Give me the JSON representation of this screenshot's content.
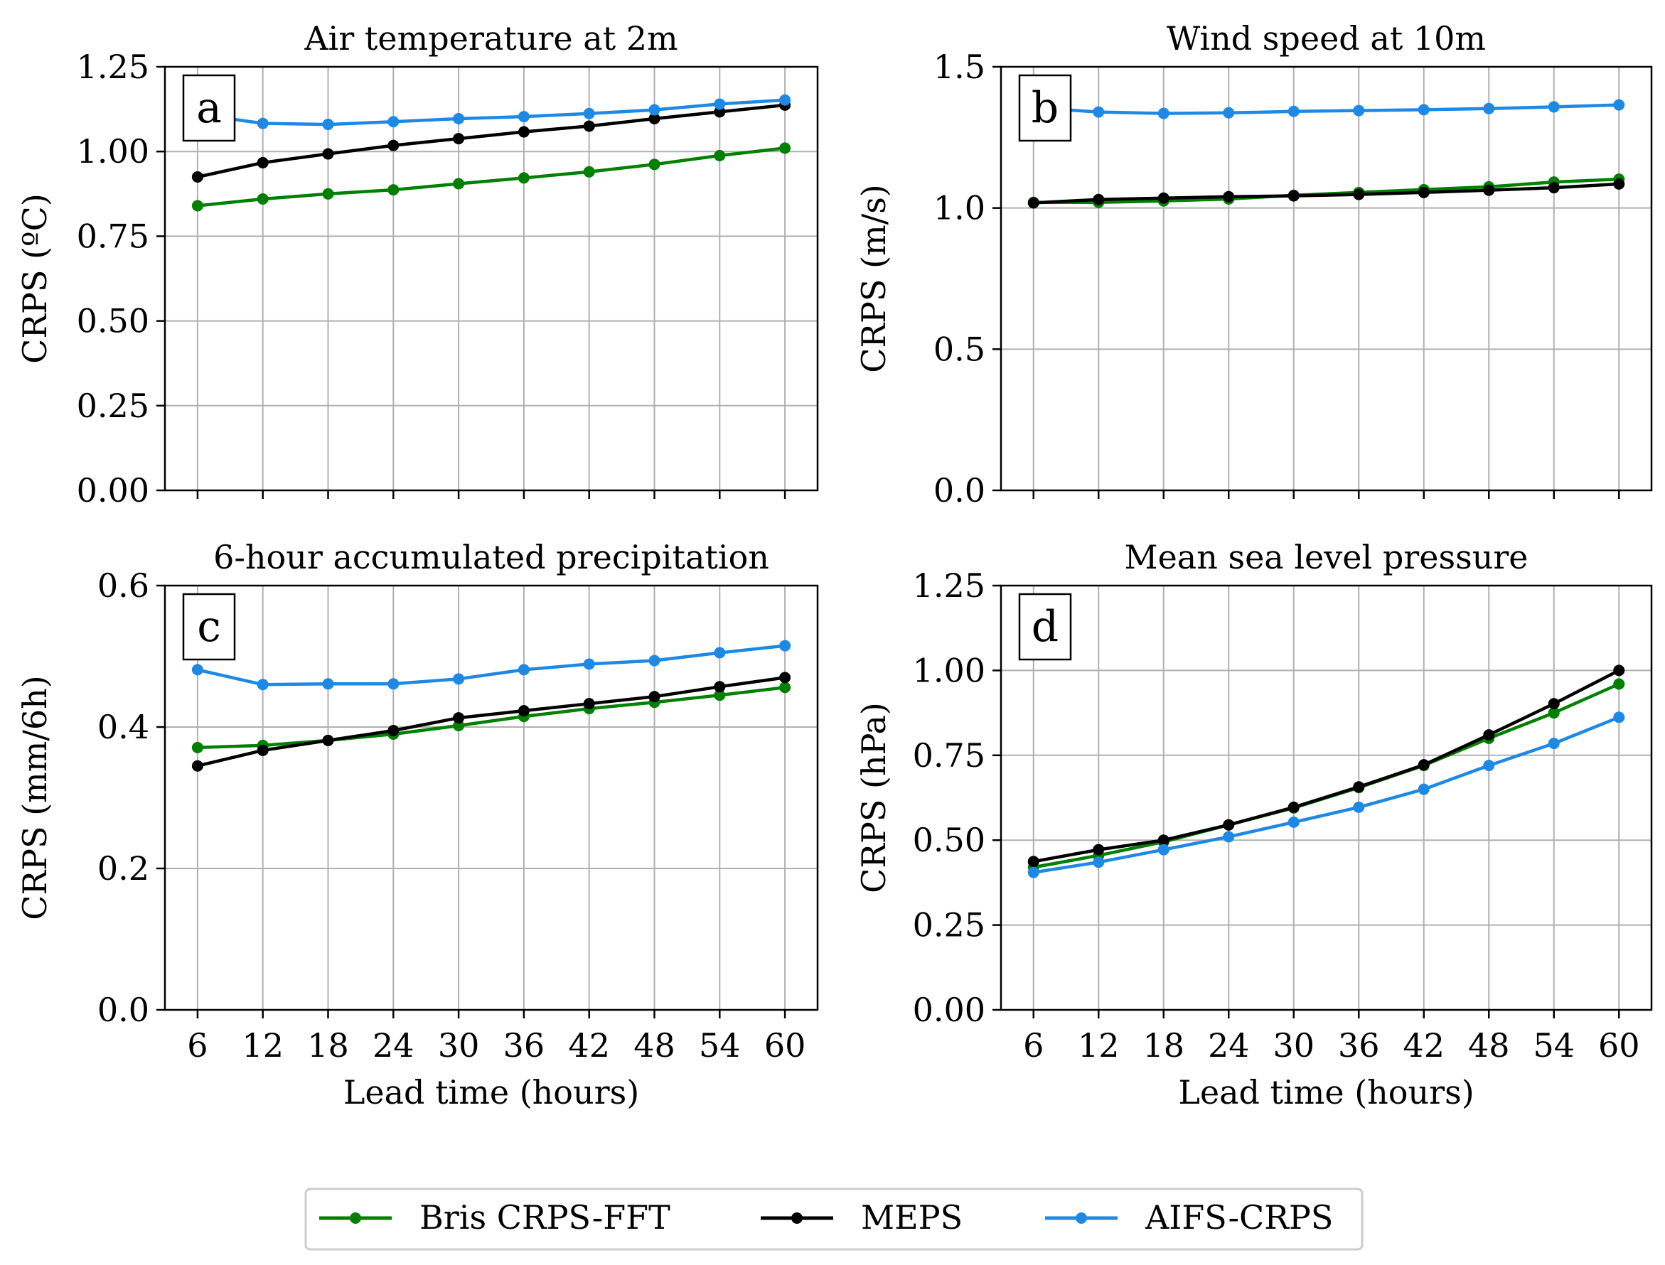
{
  "chart_data": [
    {
      "type": "line",
      "panel_label": "a",
      "title": "Air temperature at 2m",
      "xlabel": "",
      "ylabel": "CRPS (ºC)",
      "x": [
        6,
        12,
        18,
        24,
        30,
        36,
        42,
        48,
        54,
        60
      ],
      "xlim": [
        3,
        63
      ],
      "ylim": [
        0,
        1.25
      ],
      "yticks": [
        "0.00",
        "0.25",
        "0.50",
        "0.75",
        "1.00",
        "1.25"
      ],
      "grid": true,
      "series": [
        {
          "name": "Bris CRPS-FFT",
          "color": "#008000",
          "values": [
            0.84,
            0.86,
            0.875,
            0.887,
            0.905,
            0.922,
            0.94,
            0.962,
            0.988,
            1.01
          ]
        },
        {
          "name": "MEPS",
          "color": "#000000",
          "values": [
            0.925,
            0.967,
            0.993,
            1.018,
            1.038,
            1.058,
            1.075,
            1.097,
            1.117,
            1.137
          ]
        },
        {
          "name": "AIFS-CRPS",
          "color": "#1e88e5",
          "values": [
            1.11,
            1.083,
            1.08,
            1.088,
            1.097,
            1.103,
            1.112,
            1.123,
            1.14,
            1.152
          ]
        }
      ]
    },
    {
      "type": "line",
      "panel_label": "b",
      "title": "Wind speed at 10m",
      "xlabel": "",
      "ylabel": "CRPS (m/s)",
      "x": [
        6,
        12,
        18,
        24,
        30,
        36,
        42,
        48,
        54,
        60
      ],
      "xlim": [
        3,
        63
      ],
      "ylim": [
        0,
        1.5
      ],
      "yticks": [
        "0.0",
        "0.5",
        "1.0",
        "1.5"
      ],
      "grid": true,
      "series": [
        {
          "name": "Bris CRPS-FFT",
          "color": "#008000",
          "values": [
            1.02,
            1.02,
            1.025,
            1.032,
            1.045,
            1.055,
            1.065,
            1.075,
            1.092,
            1.102
          ]
        },
        {
          "name": "MEPS",
          "color": "#000000",
          "values": [
            1.018,
            1.03,
            1.035,
            1.04,
            1.043,
            1.048,
            1.055,
            1.063,
            1.072,
            1.085
          ]
        },
        {
          "name": "AIFS-CRPS",
          "color": "#1e88e5",
          "values": [
            1.355,
            1.34,
            1.335,
            1.337,
            1.342,
            1.345,
            1.348,
            1.352,
            1.358,
            1.365
          ]
        }
      ]
    },
    {
      "type": "line",
      "panel_label": "c",
      "title": "6-hour accumulated precipitation",
      "xlabel": "Lead time (hours)",
      "ylabel": "CRPS (mm/6h)",
      "x": [
        6,
        12,
        18,
        24,
        30,
        36,
        42,
        48,
        54,
        60
      ],
      "xlim": [
        3,
        63
      ],
      "ylim": [
        0,
        0.6
      ],
      "yticks": [
        "0.0",
        "0.2",
        "0.4",
        "0.6"
      ],
      "xticks": [
        "6",
        "12",
        "18",
        "24",
        "30",
        "36",
        "42",
        "48",
        "54",
        "60"
      ],
      "grid": true,
      "series": [
        {
          "name": "Bris CRPS-FFT",
          "color": "#008000",
          "values": [
            0.371,
            0.374,
            0.381,
            0.39,
            0.402,
            0.415,
            0.426,
            0.435,
            0.445,
            0.456
          ]
        },
        {
          "name": "MEPS",
          "color": "#000000",
          "values": [
            0.345,
            0.367,
            0.381,
            0.395,
            0.413,
            0.423,
            0.433,
            0.443,
            0.457,
            0.47
          ]
        },
        {
          "name": "AIFS-CRPS",
          "color": "#1e88e5",
          "values": [
            0.481,
            0.46,
            0.461,
            0.461,
            0.468,
            0.481,
            0.489,
            0.494,
            0.505,
            0.515
          ]
        }
      ]
    },
    {
      "type": "line",
      "panel_label": "d",
      "title": "Mean sea level pressure",
      "xlabel": "Lead time (hours)",
      "ylabel": "CRPS (hPa)",
      "x": [
        6,
        12,
        18,
        24,
        30,
        36,
        42,
        48,
        54,
        60
      ],
      "xlim": [
        3,
        63
      ],
      "ylim": [
        0,
        1.25
      ],
      "yticks": [
        "0.00",
        "0.25",
        "0.50",
        "0.75",
        "1.00",
        "1.25"
      ],
      "xticks": [
        "6",
        "12",
        "18",
        "24",
        "30",
        "36",
        "42",
        "48",
        "54",
        "60"
      ],
      "grid": true,
      "series": [
        {
          "name": "Bris CRPS-FFT",
          "color": "#008000",
          "values": [
            0.42,
            0.455,
            0.495,
            0.545,
            0.595,
            0.655,
            0.72,
            0.8,
            0.875,
            0.96
          ]
        },
        {
          "name": "MEPS",
          "color": "#000000",
          "values": [
            0.437,
            0.472,
            0.5,
            0.545,
            0.597,
            0.657,
            0.722,
            0.81,
            0.902,
            1.0
          ]
        },
        {
          "name": "AIFS-CRPS",
          "color": "#1e88e5",
          "values": [
            0.405,
            0.435,
            0.472,
            0.51,
            0.553,
            0.597,
            0.65,
            0.72,
            0.785,
            0.862
          ]
        }
      ]
    }
  ],
  "legend": {
    "placement": "bottom-center",
    "items": [
      {
        "label": "Bris CRPS-FFT",
        "color": "#008000"
      },
      {
        "label": "MEPS",
        "color": "#000000"
      },
      {
        "label": "AIFS-CRPS",
        "color": "#1e88e5"
      }
    ]
  }
}
